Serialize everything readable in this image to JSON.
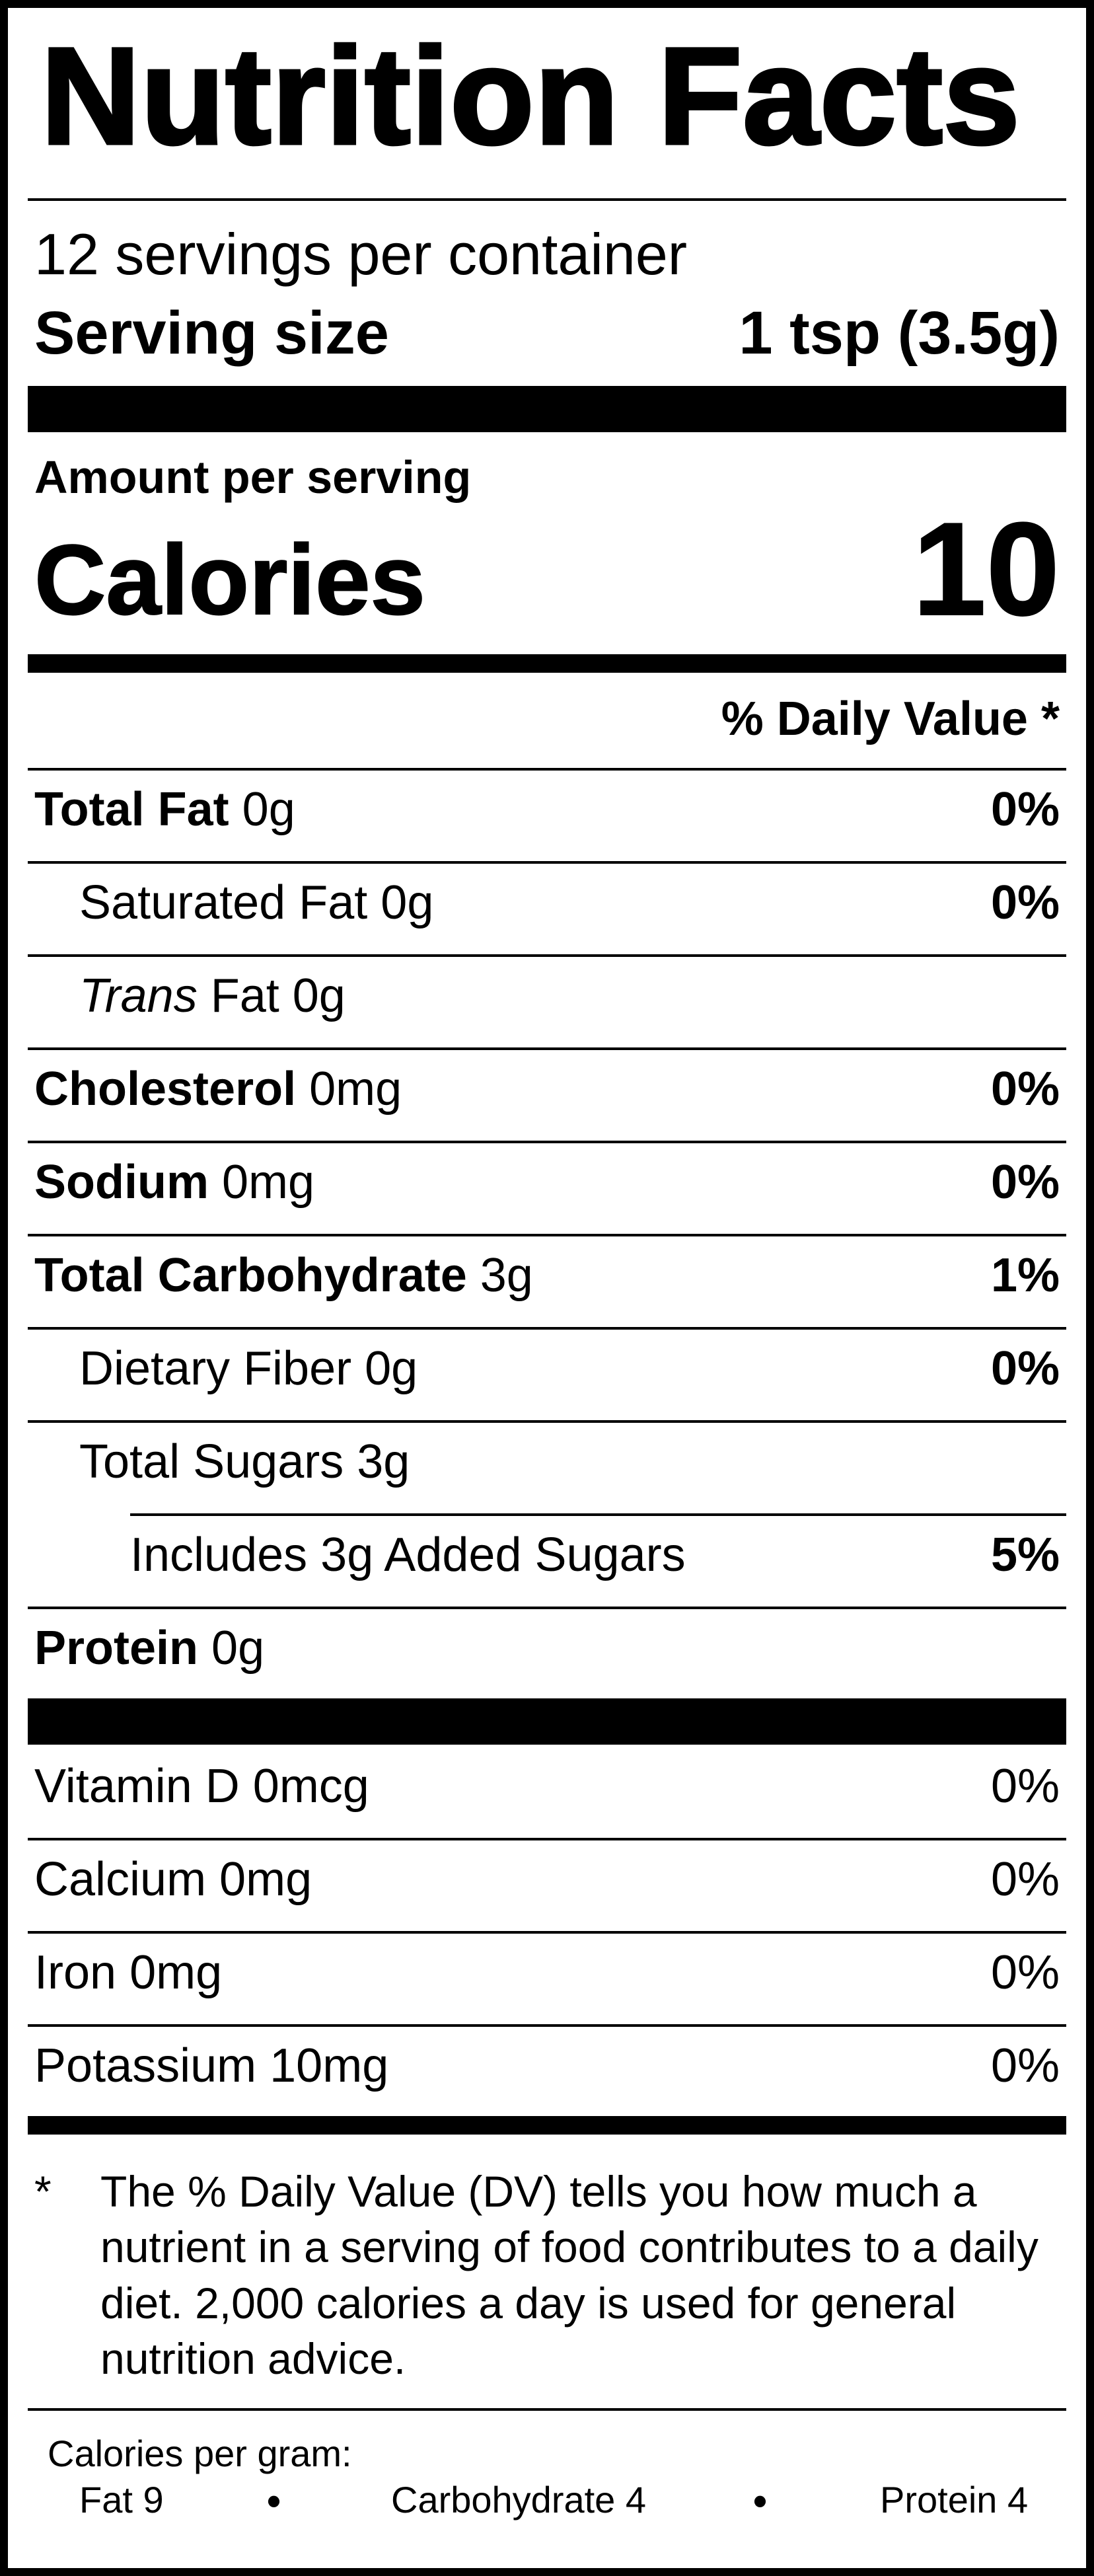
{
  "title": "Nutrition Facts",
  "servings_per_container": "12 servings per container",
  "serving_size": {
    "label": "Serving size",
    "value": "1 tsp (3.5g)"
  },
  "amount_per_serving": "Amount per serving",
  "calories": {
    "label": "Calories",
    "value": "10"
  },
  "daily_value_header": "% Daily Value *",
  "nutrients": [
    {
      "name": "Total Fat",
      "amount": " 0g",
      "dv": "0%",
      "bold": true,
      "indent": 0
    },
    {
      "name": "Saturated Fat",
      "amount": " 0g",
      "dv": "0%",
      "bold": false,
      "indent": 1
    },
    {
      "name_italic": "Trans",
      "name": " Fat",
      "amount": " 0g",
      "dv": "",
      "bold": false,
      "indent": 1
    },
    {
      "name": "Cholesterol",
      "amount": " 0mg",
      "dv": "0%",
      "bold": true,
      "indent": 0
    },
    {
      "name": "Sodium",
      "amount": " 0mg",
      "dv": "0%",
      "bold": true,
      "indent": 0
    },
    {
      "name": "Total Carbohydrate",
      "amount": " 3g",
      "dv": "1%",
      "bold": true,
      "indent": 0
    },
    {
      "name": "Dietary Fiber",
      "amount": " 0g",
      "dv": "0%",
      "bold": false,
      "indent": 1
    },
    {
      "name": "Total Sugars",
      "amount": " 3g",
      "dv": "",
      "bold": false,
      "indent": 1
    },
    {
      "name": "Includes 3g Added Sugars",
      "amount": "",
      "dv": "5%",
      "bold": false,
      "indent": 2
    },
    {
      "name": "Protein",
      "amount": " 0g",
      "dv": "",
      "bold": true,
      "indent": 0
    }
  ],
  "vitamins": [
    {
      "name": "Vitamin D 0mcg",
      "dv": "0%"
    },
    {
      "name": "Calcium 0mg",
      "dv": "0%"
    },
    {
      "name": "Iron 0mg",
      "dv": "0%"
    },
    {
      "name": "Potassium 10mg",
      "dv": "0%"
    }
  ],
  "footnote": {
    "marker": "*",
    "text": "The % Daily Value (DV) tells you how much a nutrient in a serving of food contributes to a daily diet. 2,000 calories a day is used for general nutrition advice."
  },
  "calories_per_gram": {
    "label": "Calories per gram:",
    "fat": "Fat 9",
    "carbohydrate": "Carbohydrate 4",
    "protein": "Protein 4",
    "separator": "•"
  }
}
